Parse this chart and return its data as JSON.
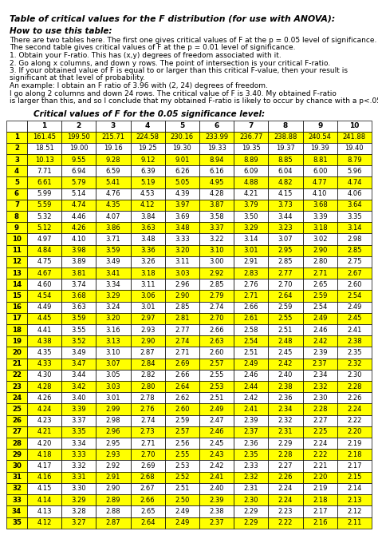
{
  "title": "Table of critical values for the F distribution (for use with ANOVA):",
  "how_to_use_title": "How to use this table:",
  "instructions": [
    "There are two tables here. The first one gives critical values of F at the p = 0.05 level of significance.",
    "The second table gives critical values of F at the p = 0.01 level of significance.",
    "1. Obtain your F-ratio. This has (x,y) degrees of freedom associated with it.",
    "2. Go along x columns, and down y rows. The point of intersection is your critical F-ratio.",
    "3. If your obtained value of F is equal to or larger than this critical F-value, then your result is",
    "significant at that level of probability.",
    "An example: I obtain an F ratio of 3.96 with (2, 24) degrees of freedom.",
    "I go along 2 columns and down 24 rows. The critical value of F is 3.40. My obtained F-ratio",
    "is larger than this, and so I conclude that my obtained F-ratio is likely to occur by chance with a p<.05."
  ],
  "table_title": "Critical values of F for the 0.05 significance level:",
  "col_headers": [
    "1",
    "2",
    "3",
    "4",
    "5",
    "6",
    "7",
    "8",
    "9",
    "10"
  ],
  "row_labels": [
    "1",
    "2",
    "3",
    "4",
    "5",
    "6",
    "7",
    "8",
    "9",
    "10",
    "11",
    "12",
    "13",
    "14",
    "15",
    "16",
    "17",
    "18",
    "19",
    "20",
    "21",
    "22",
    "23",
    "24",
    "25",
    "26",
    "27",
    "28",
    "29",
    "30",
    "31",
    "32",
    "33",
    "34",
    "35"
  ],
  "table_data": [
    [
      161.45,
      199.5,
      215.71,
      224.58,
      230.16,
      233.99,
      236.77,
      238.88,
      240.54,
      241.88
    ],
    [
      18.51,
      19.0,
      19.16,
      19.25,
      19.3,
      19.33,
      19.35,
      19.37,
      19.39,
      19.4
    ],
    [
      10.13,
      9.55,
      9.28,
      9.12,
      9.01,
      8.94,
      8.89,
      8.85,
      8.81,
      8.79
    ],
    [
      7.71,
      6.94,
      6.59,
      6.39,
      6.26,
      6.16,
      6.09,
      6.04,
      6.0,
      5.96
    ],
    [
      6.61,
      5.79,
      5.41,
      5.19,
      5.05,
      4.95,
      4.88,
      4.82,
      4.77,
      4.74
    ],
    [
      5.99,
      5.14,
      4.76,
      4.53,
      4.39,
      4.28,
      4.21,
      4.15,
      4.1,
      4.06
    ],
    [
      5.59,
      4.74,
      4.35,
      4.12,
      3.97,
      3.87,
      3.79,
      3.73,
      3.68,
      3.64
    ],
    [
      5.32,
      4.46,
      4.07,
      3.84,
      3.69,
      3.58,
      3.5,
      3.44,
      3.39,
      3.35
    ],
    [
      5.12,
      4.26,
      3.86,
      3.63,
      3.48,
      3.37,
      3.29,
      3.23,
      3.18,
      3.14
    ],
    [
      4.97,
      4.1,
      3.71,
      3.48,
      3.33,
      3.22,
      3.14,
      3.07,
      3.02,
      2.98
    ],
    [
      4.84,
      3.98,
      3.59,
      3.36,
      3.2,
      3.1,
      3.01,
      2.95,
      2.9,
      2.85
    ],
    [
      4.75,
      3.89,
      3.49,
      3.26,
      3.11,
      3.0,
      2.91,
      2.85,
      2.8,
      2.75
    ],
    [
      4.67,
      3.81,
      3.41,
      3.18,
      3.03,
      2.92,
      2.83,
      2.77,
      2.71,
      2.67
    ],
    [
      4.6,
      3.74,
      3.34,
      3.11,
      2.96,
      2.85,
      2.76,
      2.7,
      2.65,
      2.6
    ],
    [
      4.54,
      3.68,
      3.29,
      3.06,
      2.9,
      2.79,
      2.71,
      2.64,
      2.59,
      2.54
    ],
    [
      4.49,
      3.63,
      3.24,
      3.01,
      2.85,
      2.74,
      2.66,
      2.59,
      2.54,
      2.49
    ],
    [
      4.45,
      3.59,
      3.2,
      2.97,
      2.81,
      2.7,
      2.61,
      2.55,
      2.49,
      2.45
    ],
    [
      4.41,
      3.55,
      3.16,
      2.93,
      2.77,
      2.66,
      2.58,
      2.51,
      2.46,
      2.41
    ],
    [
      4.38,
      3.52,
      3.13,
      2.9,
      2.74,
      2.63,
      2.54,
      2.48,
      2.42,
      2.38
    ],
    [
      4.35,
      3.49,
      3.1,
      2.87,
      2.71,
      2.6,
      2.51,
      2.45,
      2.39,
      2.35
    ],
    [
      4.33,
      3.47,
      3.07,
      2.84,
      2.69,
      2.57,
      2.49,
      2.42,
      2.37,
      2.32
    ],
    [
      4.3,
      3.44,
      3.05,
      2.82,
      2.66,
      2.55,
      2.46,
      2.4,
      2.34,
      2.3
    ],
    [
      4.28,
      3.42,
      3.03,
      2.8,
      2.64,
      2.53,
      2.44,
      2.38,
      2.32,
      2.28
    ],
    [
      4.26,
      3.4,
      3.01,
      2.78,
      2.62,
      2.51,
      2.42,
      2.36,
      2.3,
      2.26
    ],
    [
      4.24,
      3.39,
      2.99,
      2.76,
      2.6,
      2.49,
      2.41,
      2.34,
      2.28,
      2.24
    ],
    [
      4.23,
      3.37,
      2.98,
      2.74,
      2.59,
      2.47,
      2.39,
      2.32,
      2.27,
      2.22
    ],
    [
      4.21,
      3.35,
      2.96,
      2.73,
      2.57,
      2.46,
      2.37,
      2.31,
      2.25,
      2.2
    ],
    [
      4.2,
      3.34,
      2.95,
      2.71,
      2.56,
      2.45,
      2.36,
      2.29,
      2.24,
      2.19
    ],
    [
      4.18,
      3.33,
      2.93,
      2.7,
      2.55,
      2.43,
      2.35,
      2.28,
      2.22,
      2.18
    ],
    [
      4.17,
      3.32,
      2.92,
      2.69,
      2.53,
      2.42,
      2.33,
      2.27,
      2.21,
      2.17
    ],
    [
      4.16,
      3.31,
      2.91,
      2.68,
      2.52,
      2.41,
      2.32,
      2.26,
      2.2,
      2.15
    ],
    [
      4.15,
      3.3,
      2.9,
      2.67,
      2.51,
      2.4,
      2.31,
      2.24,
      2.19,
      2.14
    ],
    [
      4.14,
      3.29,
      2.89,
      2.66,
      2.5,
      2.39,
      2.3,
      2.24,
      2.18,
      2.13
    ],
    [
      4.13,
      3.28,
      2.88,
      2.65,
      2.49,
      2.38,
      2.29,
      2.23,
      2.17,
      2.12
    ],
    [
      4.12,
      3.27,
      2.87,
      2.64,
      2.49,
      2.37,
      2.29,
      2.22,
      2.16,
      2.11
    ]
  ],
  "row_label_bg": "#FFFF00",
  "col_header_bg": "#FFFFFF",
  "alt_row_bg": "#FFFF00",
  "normal_row_bg": "#FFFFFF",
  "bg_color": "#FFFFFF",
  "text_color": "#000000",
  "border_color": "#000000",
  "fig_width": 4.74,
  "fig_height": 6.7,
  "dpi": 100
}
